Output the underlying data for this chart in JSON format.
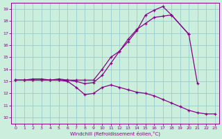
{
  "line1_x": [
    0,
    1,
    2,
    3,
    4,
    5,
    6,
    7,
    8,
    9,
    10,
    11,
    12,
    13,
    14,
    15,
    16,
    17,
    18,
    20,
    21
  ],
  "line1_y": [
    13.1,
    13.1,
    13.2,
    13.2,
    13.1,
    13.2,
    13.1,
    13.1,
    13.1,
    13.1,
    14.0,
    15.0,
    15.5,
    16.3,
    17.2,
    18.5,
    18.9,
    19.2,
    18.5,
    16.9,
    12.8
  ],
  "line2_x": [
    0,
    1,
    2,
    3,
    4,
    5,
    6,
    7,
    8,
    9,
    10,
    11,
    12,
    13,
    14,
    15,
    16,
    17,
    18,
    20
  ],
  "line2_y": [
    13.1,
    13.1,
    13.1,
    13.1,
    13.1,
    13.1,
    13.1,
    13.0,
    12.8,
    12.9,
    13.5,
    14.5,
    15.5,
    16.5,
    17.3,
    17.8,
    18.3,
    18.4,
    18.5,
    16.9
  ],
  "line3_x": [
    0,
    1,
    2,
    3,
    4,
    5,
    6,
    7,
    8,
    9,
    10,
    11,
    12,
    13,
    14,
    15,
    16,
    17,
    18,
    19,
    20,
    21,
    22,
    23
  ],
  "line3_y": [
    13.1,
    13.1,
    13.1,
    13.1,
    13.1,
    13.1,
    13.0,
    12.5,
    11.9,
    12.0,
    12.5,
    12.7,
    12.5,
    12.3,
    12.1,
    12.0,
    11.8,
    11.5,
    11.2,
    10.9,
    10.6,
    10.4,
    10.3,
    10.3
  ],
  "line_color": "#880088",
  "bg_color": "#cceedd",
  "grid_color": "#99cccc",
  "xlim_min": -0.5,
  "xlim_max": 23.5,
  "ylim_min": 9.5,
  "ylim_max": 19.5,
  "yticks": [
    10,
    11,
    12,
    13,
    14,
    15,
    16,
    17,
    18,
    19
  ],
  "xticks": [
    0,
    1,
    2,
    3,
    4,
    5,
    6,
    7,
    8,
    9,
    10,
    11,
    12,
    13,
    14,
    15,
    16,
    17,
    18,
    19,
    20,
    21,
    22,
    23
  ],
  "xlabel": "Windchill (Refroidissement éolien,°C)"
}
